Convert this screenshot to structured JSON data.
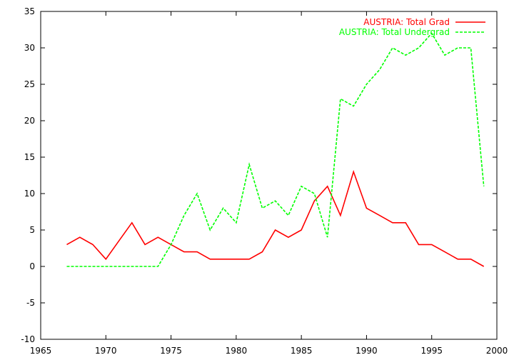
{
  "chart_data": {
    "type": "line",
    "title": "",
    "xlabel": "",
    "ylabel": "",
    "xlim": [
      1965,
      2000
    ],
    "ylim": [
      -10,
      35
    ],
    "xticks": [
      1965,
      1970,
      1975,
      1980,
      1985,
      1990,
      1995,
      2000
    ],
    "yticks": [
      -10,
      -5,
      0,
      5,
      10,
      15,
      20,
      25,
      30,
      35
    ],
    "grid": false,
    "legend_position": "top-right",
    "x": [
      1967,
      1968,
      1969,
      1970,
      1971,
      1972,
      1973,
      1974,
      1975,
      1976,
      1977,
      1978,
      1979,
      1980,
      1981,
      1982,
      1983,
      1984,
      1985,
      1986,
      1987,
      1988,
      1989,
      1990,
      1991,
      1992,
      1993,
      1994,
      1995,
      1996,
      1997,
      1998,
      1999
    ],
    "series": [
      {
        "name": "AUSTRIA: Total Grad",
        "color": "#ff0000",
        "dash": "solid",
        "values": [
          3,
          4,
          3,
          1,
          3.5,
          6,
          3,
          4,
          3,
          2,
          2,
          1,
          1,
          1,
          1,
          2,
          5,
          4,
          5,
          9,
          11,
          7,
          13,
          8,
          7,
          6,
          6,
          3,
          3,
          2,
          1,
          1,
          0
        ]
      },
      {
        "name": "AUSTRIA: Total Undergrad",
        "color": "#00ff00",
        "dash": "dashed",
        "values": [
          0,
          0,
          0,
          0,
          0,
          0,
          0,
          0,
          3,
          7,
          10,
          5,
          8,
          6,
          14,
          8,
          9,
          7,
          11,
          10,
          4,
          23,
          22,
          25,
          27,
          30,
          29,
          30,
          32,
          29,
          30,
          30,
          11
        ]
      }
    ]
  }
}
